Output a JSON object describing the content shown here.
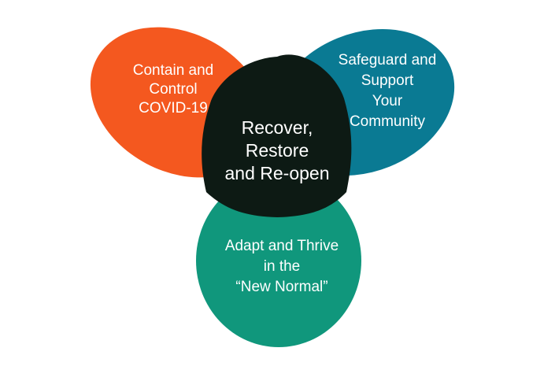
{
  "colors": {
    "background": "#ffffff",
    "orange": "#f4581f",
    "blue": "#0a7a93",
    "green": "#10977c",
    "overlap_orange_blue": "#2e3a33",
    "overlap_orange_green": "#2a4f38",
    "overlap_blue_green": "#0c5a58",
    "center": "#0d1a14",
    "text": "#ffffff"
  },
  "sets": [
    {
      "id": "orange",
      "lines": [
        "Contain and",
        "Control",
        "COVID-19"
      ]
    },
    {
      "id": "blue",
      "lines": [
        "Safeguard and",
        "Support",
        "Your",
        "Community"
      ]
    },
    {
      "id": "green",
      "lines": [
        "Adapt and Thrive",
        "in the",
        "“New Normal”"
      ]
    }
  ],
  "center": {
    "lines": [
      "Recover,",
      "Restore",
      "and Re-open"
    ]
  }
}
